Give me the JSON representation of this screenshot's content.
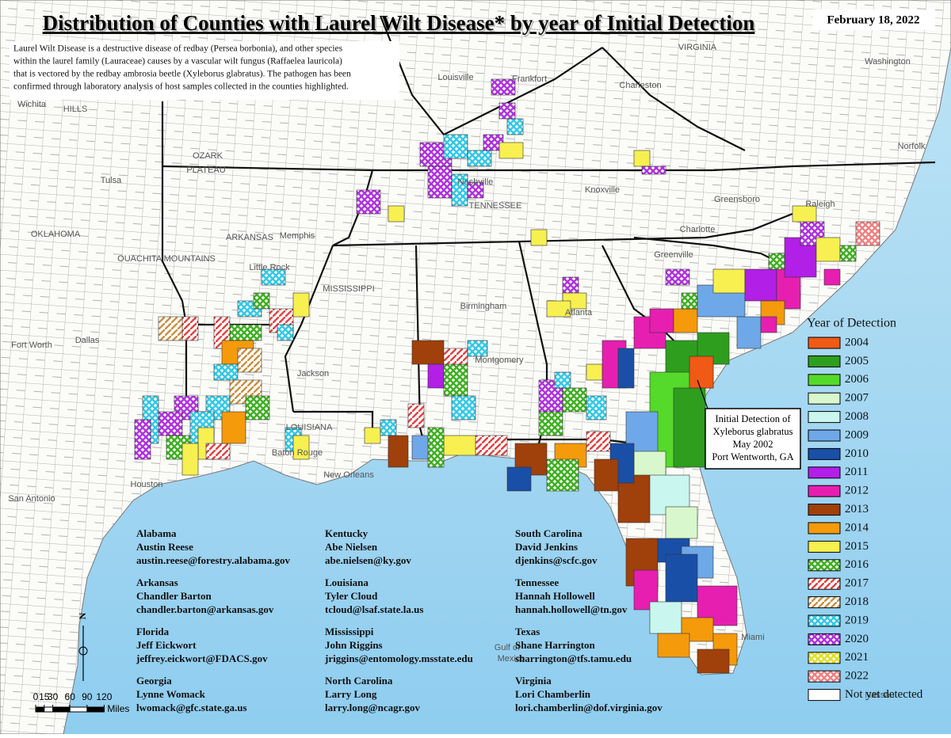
{
  "title": "Distribution of Counties with Laurel Wilt Disease* by year of Initial Detection",
  "date": "February 18, 2022",
  "description": [
    "Laurel Wilt Disease is a destructive disease of redbay (Persea borbonia), and other species",
    "within the laurel family (Lauraceae) causes by a vascular wilt fungus (Raffaelea lauricola)",
    "that is vectored by the redbay ambrosia beetle (Xyleborus glabratus). The pathogen has been",
    "confirmed through laboratory analysis of host samples collected in the counties highlighted."
  ],
  "legend": {
    "title": "Year of Detection",
    "items": [
      {
        "label": "2004",
        "color": "#f05a14",
        "pattern": "solid"
      },
      {
        "label": "2005",
        "color": "#2e9e1e",
        "pattern": "solid"
      },
      {
        "label": "2006",
        "color": "#55d92a",
        "pattern": "solid"
      },
      {
        "label": "2007",
        "color": "#d8f7cc",
        "pattern": "solid"
      },
      {
        "label": "2008",
        "color": "#c9f6ee",
        "pattern": "solid"
      },
      {
        "label": "2009",
        "color": "#6ea8e8",
        "pattern": "solid"
      },
      {
        "label": "2010",
        "color": "#1a4fa8",
        "pattern": "solid"
      },
      {
        "label": "2011",
        "color": "#b21fe6",
        "pattern": "solid"
      },
      {
        "label": "2012",
        "color": "#e61fb0",
        "pattern": "solid"
      },
      {
        "label": "2013",
        "color": "#a0400a",
        "pattern": "solid"
      },
      {
        "label": "2014",
        "color": "#f59a0a",
        "pattern": "solid"
      },
      {
        "label": "2015",
        "color": "#f7f050",
        "pattern": "solid"
      },
      {
        "label": "2016",
        "color": "#3cb01e",
        "pattern": "crosshatch"
      },
      {
        "label": "2017",
        "color": "#e84040",
        "pattern": "stripe"
      },
      {
        "label": "2018",
        "color": "#c89040",
        "pattern": "stripe"
      },
      {
        "label": "2019",
        "color": "#30c8e8",
        "pattern": "crosshatch"
      },
      {
        "label": "2020",
        "color": "#b030e0",
        "pattern": "crosshatch"
      },
      {
        "label": "2021",
        "color": "#e0e020",
        "pattern": "crosshatch"
      },
      {
        "label": "2022",
        "color": "#f08080",
        "pattern": "crosshatch"
      },
      {
        "label": "Not yet detected",
        "color": "#ffffff",
        "pattern": "solid"
      }
    ]
  },
  "annotation": [
    "Initial Detection of",
    "Xyleborus glabratus",
    "May 2002",
    "Port Wentworth, GA"
  ],
  "contacts": [
    {
      "state": "Alabama",
      "name": "Austin Reese",
      "email": "austin.reese@forestry.alabama.gov"
    },
    {
      "state": "Arkansas",
      "name": "Chandler Barton",
      "email": "chandler.barton@arkansas.gov"
    },
    {
      "state": "Florida",
      "name": "Jeff Eickwort",
      "email": "jeffrey.eickwort@FDACS.gov"
    },
    {
      "state": "Georgia",
      "name": "Lynne Womack",
      "email": "lwomack@gfc.state.ga.us"
    },
    {
      "state": "Kentucky",
      "name": "Abe Nielsen",
      "email": "abe.nielsen@ky.gov"
    },
    {
      "state": "Louisiana",
      "name": "Tyler Cloud",
      "email": "tcloud@lsaf.state.la.us"
    },
    {
      "state": "Mississippi",
      "name": "John Riggins",
      "email": "jriggins@entomology.msstate.edu"
    },
    {
      "state": "North Carolina",
      "name": "Larry Long",
      "email": "larry.long@ncagr.gov"
    },
    {
      "state": "South Carolina",
      "name": "David Jenkins",
      "email": "djenkins@scfc.gov"
    },
    {
      "state": "Tennessee",
      "name": "Hannah Hollowell",
      "email": "hannah.hollowell@tn.gov"
    },
    {
      "state": "Texas",
      "name": "Shane Harrington",
      "email": "sharrington@tfs.tamu.edu"
    },
    {
      "state": "Virginia",
      "name": "Lori Chamberlin",
      "email": "lori.chamberlin@dof.virginia.gov"
    }
  ],
  "scale_bar": {
    "ticks": [
      0,
      15,
      30,
      60,
      90,
      120
    ],
    "unit": "Miles"
  },
  "north": "N",
  "map_labels": [
    "Louisville",
    "Frankfort",
    "Charleston",
    "VIRGINIA",
    "Washington",
    "Wichita",
    "HILLS",
    "OZARK",
    "PLATEAU",
    "Tulsa",
    "OKLAHOMA",
    "OUACHITA MOUNTAINS",
    "ARKANSAS",
    "Memphis",
    "Little Rock",
    "Nashville",
    "TENNESSEE",
    "Knoxville",
    "Greensboro",
    "Raleigh",
    "Charlotte",
    "Norfolk",
    "Greenville",
    "MISSISSIPPI",
    "Birmingham",
    "Atlanta",
    "Montgomery",
    "Dallas",
    "Fort Worth",
    "Jackson",
    "LOUISIANA",
    "Baton Rouge",
    "New Orleans",
    "Houston",
    "San Antonio",
    "Gulf of",
    "Mexico",
    "Miami",
    "Nassau"
  ]
}
